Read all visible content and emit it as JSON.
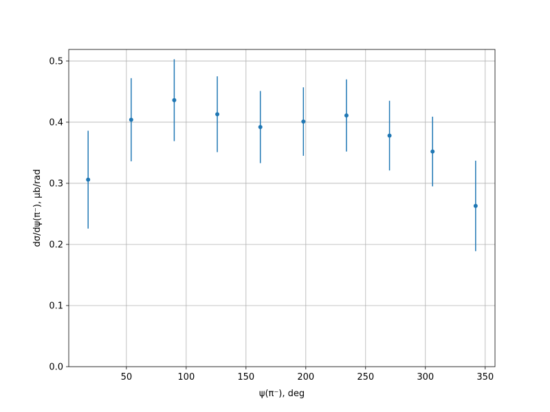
{
  "chart_data": {
    "type": "errorbar",
    "xlabel": "ψ(π⁻), deg",
    "ylabel": "dσ/dψ(π⁻), μb/rad",
    "x": [
      18,
      54,
      90,
      126,
      162,
      198,
      234,
      270,
      306,
      342
    ],
    "values": [
      0.306,
      0.404,
      0.436,
      0.413,
      0.392,
      0.401,
      0.411,
      0.378,
      0.352,
      0.263
    ],
    "errors": [
      0.08,
      0.068,
      0.067,
      0.062,
      0.059,
      0.056,
      0.059,
      0.057,
      0.057,
      0.074
    ],
    "color": "#1f77b4",
    "xlim": [
      1.8,
      358.2
    ],
    "ylim": [
      0,
      0.519
    ],
    "xticks": [
      50,
      100,
      150,
      200,
      250,
      300,
      350
    ],
    "yticks": [
      {
        "value": 0,
        "label": "0.0"
      },
      0.1,
      0.2,
      0.3,
      0.4,
      0.5
    ],
    "grid": true
  }
}
